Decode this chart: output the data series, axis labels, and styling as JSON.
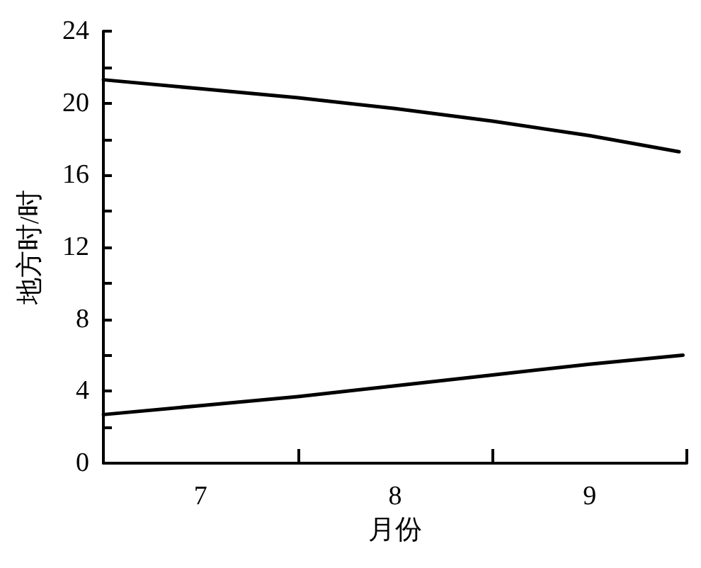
{
  "chart_data": {
    "type": "line",
    "xlabel": "月份",
    "ylabel": "地方时/时",
    "xlim": [
      6.5,
      9.5
    ],
    "ylim": [
      0,
      24
    ],
    "xticks": [
      {
        "value": 7,
        "label": "7"
      },
      {
        "value": 7.5,
        "label": null
      },
      {
        "value": 8,
        "label": "8"
      },
      {
        "value": 8.5,
        "label": null
      },
      {
        "value": 9,
        "label": "9"
      },
      {
        "value": 9.5,
        "label": null
      }
    ],
    "yticks": [
      0,
      {
        "value": 2,
        "label": null
      },
      4,
      {
        "value": 6,
        "label": null
      },
      8,
      {
        "value": 10,
        "label": null
      },
      12,
      {
        "value": 14,
        "label": null
      },
      16,
      {
        "value": 18,
        "label": null
      },
      20,
      {
        "value": 22,
        "label": null
      },
      24
    ],
    "grid": false,
    "marker": "none",
    "line_style": "solid",
    "series": [
      {
        "color": "#000000",
        "x": [
          6.5,
          7,
          7.5,
          8,
          8.5,
          9,
          9.46
        ],
        "values": [
          21.3,
          20.8,
          20.3,
          19.7,
          19.0,
          18.2,
          17.3
        ]
      },
      {
        "color": "#000000",
        "x": [
          6.5,
          7,
          7.5,
          8,
          8.5,
          9,
          9.48
        ],
        "values": [
          2.7,
          3.2,
          3.7,
          4.3,
          4.9,
          5.5,
          6.0
        ]
      }
    ]
  }
}
